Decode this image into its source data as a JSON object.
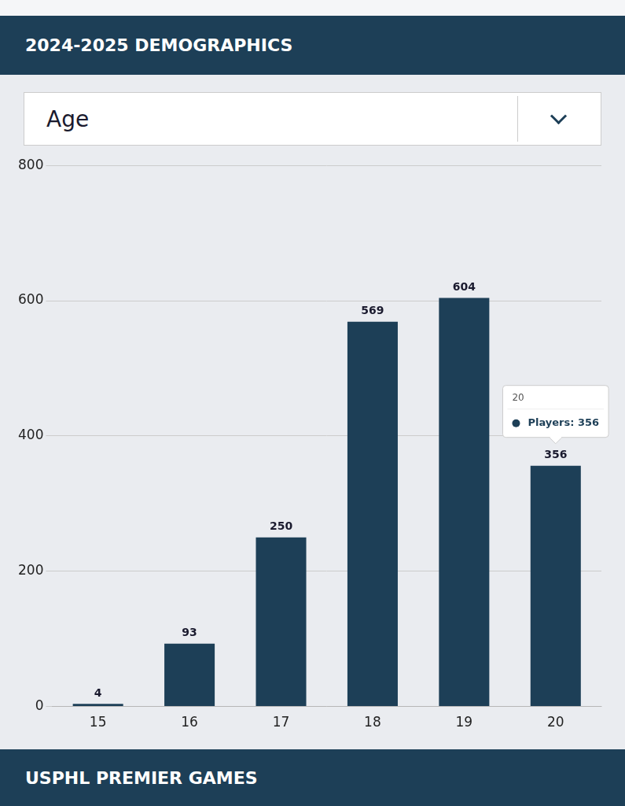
{
  "chart_data": {
    "type": "bar",
    "title": "2024-2025 DEMOGRAPHICS",
    "subtitle": "USPHL PREMIER GAMES",
    "xlabel": "Age",
    "categories": [
      15,
      16,
      17,
      18,
      19,
      20
    ],
    "values": [
      4,
      93,
      250,
      569,
      604,
      356
    ],
    "color": "#1d3f57",
    "ylim": [
      0,
      800
    ],
    "yticks": [
      0,
      200,
      400,
      600,
      800
    ],
    "grid": true,
    "data_labels": true,
    "annotations": [
      {
        "x": 20,
        "y": 356,
        "title": "20",
        "text": "Players: 356"
      }
    ]
  }
}
